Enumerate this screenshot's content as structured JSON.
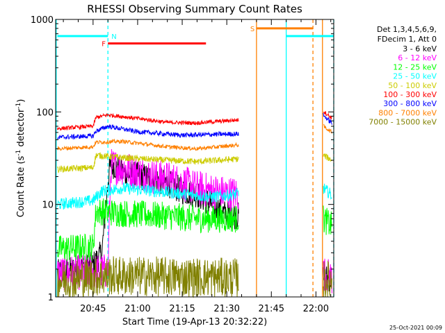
{
  "chart_data": {
    "type": "line",
    "title": "RHESSI Observing Summary Count Rates",
    "xlabel": "Start Time (19-Apr-13 20:32:22)",
    "ylabel_main": "Count Rate (s",
    "ylabel_sup1": "-1",
    "ylabel_mid": " detector",
    "ylabel_sup2": "-1",
    "ylabel_end": ")",
    "yscale": "log",
    "ylim": [
      1,
      1000
    ],
    "xlim_min": [
      32.4,
      126
    ],
    "y_ticks": [
      {
        "v": 1,
        "label": "1"
      },
      {
        "v": 10,
        "label": "10"
      },
      {
        "v": 100,
        "label": "100"
      },
      {
        "v": 1000,
        "label": "1000"
      }
    ],
    "x_ticks": [
      {
        "v": 45,
        "label": "20:45"
      },
      {
        "v": 60,
        "label": "21:00"
      },
      {
        "v": 75,
        "label": "21:15"
      },
      {
        "v": 90,
        "label": "21:30"
      },
      {
        "v": 105,
        "label": "21:45"
      },
      {
        "v": 120,
        "label": "22:00"
      }
    ],
    "legend_header": [
      "Det 1,3,4,5,6,9,",
      "FDecim 1, Att 0"
    ],
    "timestamp": "25-Oct-2021 00:09",
    "series": [
      {
        "name": "3 - 6 keV",
        "color": "#000000"
      },
      {
        "name": "6 - 12 keV",
        "color": "#ff00ff"
      },
      {
        "name": "12 - 25 keV",
        "color": "#00ff00"
      },
      {
        "name": "25 - 50 keV",
        "color": "#00ffff"
      },
      {
        "name": "50 - 100 keV",
        "color": "#cccc00"
      },
      {
        "name": "100 - 300 keV",
        "color": "#ff0000"
      },
      {
        "name": "300 - 800 keV",
        "color": "#0000ff"
      },
      {
        "name": "800 - 7000 keV",
        "color": "#ff8000"
      },
      {
        "name": "7000 - 15000 keV",
        "color": "#808000"
      }
    ],
    "profiles": {
      "3 - 6 keV": [
        [
          33,
          1.8
        ],
        [
          45,
          2.2
        ],
        [
          48,
          3
        ],
        [
          50,
          18
        ],
        [
          51,
          28
        ],
        [
          55,
          22
        ],
        [
          65,
          19
        ],
        [
          70,
          17
        ],
        [
          75,
          14
        ],
        [
          80,
          13
        ],
        [
          85,
          10
        ],
        [
          89,
          8
        ],
        [
          94,
          7.5
        ]
      ],
      "6 - 12 keV": [
        [
          33,
          1.8
        ],
        [
          50,
          1.9
        ],
        [
          51,
          26
        ],
        [
          55,
          25
        ],
        [
          60,
          22
        ],
        [
          65,
          20
        ],
        [
          70,
          19
        ],
        [
          75,
          17
        ],
        [
          80,
          15
        ],
        [
          85,
          14
        ],
        [
          90,
          13
        ],
        [
          94,
          13
        ]
      ],
      "12 - 25 keV": [
        [
          33,
          3.3
        ],
        [
          45,
          3.5
        ],
        [
          46,
          8.5
        ],
        [
          55,
          8
        ],
        [
          70,
          7.5
        ],
        [
          80,
          7
        ],
        [
          94,
          7
        ]
      ],
      "25 - 50 keV": [
        [
          33,
          10
        ],
        [
          45,
          11
        ],
        [
          48,
          14
        ],
        [
          55,
          15
        ],
        [
          65,
          14
        ],
        [
          75,
          13
        ],
        [
          85,
          12
        ],
        [
          94,
          13
        ]
      ],
      "50 - 100 keV": [
        [
          33,
          24
        ],
        [
          45,
          25
        ],
        [
          46,
          34
        ],
        [
          55,
          32
        ],
        [
          70,
          30
        ],
        [
          80,
          29
        ],
        [
          94,
          31
        ]
      ],
      "100 - 300 keV": [
        [
          33,
          66
        ],
        [
          45,
          70
        ],
        [
          46,
          87
        ],
        [
          50,
          93
        ],
        [
          60,
          85
        ],
        [
          70,
          77
        ],
        [
          80,
          76
        ],
        [
          94,
          82
        ]
      ],
      "300 - 800 keV": [
        [
          33,
          53
        ],
        [
          45,
          55
        ],
        [
          46,
          62
        ],
        [
          50,
          70
        ],
        [
          60,
          61
        ],
        [
          75,
          56
        ],
        [
          94,
          58
        ]
      ],
      "800 - 7000 keV": [
        [
          33,
          40
        ],
        [
          45,
          42
        ],
        [
          46,
          47
        ],
        [
          55,
          48
        ],
        [
          70,
          42
        ],
        [
          80,
          40
        ],
        [
          94,
          44
        ]
      ],
      "7000 - 15000 keV": [
        [
          33,
          1.5
        ],
        [
          50,
          1.7
        ],
        [
          94,
          1.6
        ]
      ]
    },
    "profiles_late": {
      "3 - 6 keV": [
        [
          122.5,
          1.6
        ],
        [
          125.5,
          1.6
        ]
      ],
      "6 - 12 keV": [
        [
          122.5,
          1.8
        ],
        [
          125.5,
          1.6
        ]
      ],
      "12 - 25 keV": [
        [
          122.5,
          7
        ],
        [
          125.5,
          5.8
        ]
      ],
      "25 - 50 keV": [
        [
          122.5,
          15
        ],
        [
          125.5,
          12.5
        ]
      ],
      "50 - 100 keV": [
        [
          122.5,
          34
        ],
        [
          125.5,
          30
        ]
      ],
      "100 - 300 keV": [
        [
          122.5,
          102
        ],
        [
          125.5,
          85
        ]
      ],
      "300 - 800 keV": [
        [
          122.5,
          92
        ],
        [
          125.5,
          75
        ]
      ],
      "800 - 7000 keV": [
        [
          122.5,
          70
        ],
        [
          125.5,
          60
        ]
      ],
      "7000 - 15000 keV": [
        [
          122.5,
          1.5
        ],
        [
          125.5,
          1.5
        ]
      ]
    },
    "flags": [
      {
        "label": "F",
        "color": "#ff0000",
        "x0": 50,
        "x1": 83,
        "y": 550
      },
      {
        "label": "N",
        "color": "#00ffff",
        "x0": 33,
        "x1": 50,
        "y": 660
      },
      {
        "label": "S",
        "color": "#ff8000",
        "x0": 100,
        "x1": 119,
        "y": 800
      },
      {
        "label": "",
        "color": "#00ffff",
        "x0": 110,
        "x1": 126,
        "y": 660
      }
    ],
    "vlines": [
      {
        "x": 32.6,
        "color": "#00ffff",
        "dash": false
      },
      {
        "x": 50,
        "color": "#00ffff",
        "dash": true
      },
      {
        "x": 100,
        "color": "#ff8000",
        "dash": false
      },
      {
        "x": 110,
        "color": "#00ffff",
        "dash": false
      },
      {
        "x": 119,
        "color": "#ff8000",
        "dash": true
      },
      {
        "x": 122.2,
        "color": "#ff8000",
        "dash": false
      },
      {
        "x": 126,
        "color": "#00ffff",
        "dash": true
      }
    ]
  }
}
